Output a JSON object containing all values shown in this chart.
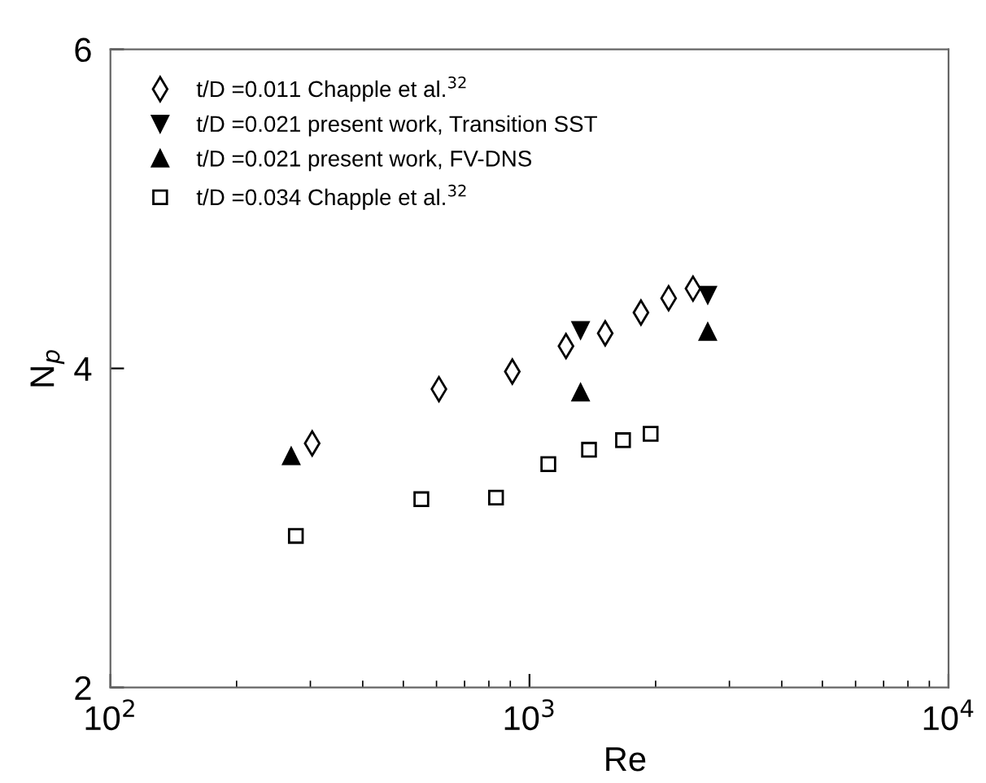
{
  "chart_data": {
    "type": "scatter",
    "xlabel": "Re",
    "ylabel": "N$_{p}$",
    "log": "x",
    "xlim": [
      100,
      10000
    ],
    "xticks": [
      {
        "value": 100,
        "label": "10$^{2}$"
      },
      {
        "value": 1000,
        "label": "10$^{3}$"
      },
      {
        "value": 10000,
        "label": "10$^{4}$"
      }
    ],
    "ylim": [
      2,
      6
    ],
    "yticks": [
      2,
      4,
      6
    ],
    "grid": false,
    "legend": "top left",
    "series": [
      {
        "name": "t/D =0.011 Chapple et al.$^{32}$",
        "color": "#000000",
        "marker": "diamond",
        "x": [
          303,
          608,
          910,
          1222,
          1516,
          1845,
          2148,
          2456
        ],
        "values": [
          3.53,
          3.87,
          3.98,
          4.14,
          4.22,
          4.35,
          4.44,
          4.5
        ]
      },
      {
        "name": "t/D =0.021 present work, Transition SST",
        "color": "#000000",
        "marker": "triangle_down",
        "x": [
          1324,
          2663
        ],
        "values": [
          4.24,
          4.46
        ]
      },
      {
        "name": "t/D =0.021 present work, FV-DNS",
        "color": "#000000",
        "marker": "triangle",
        "x": [
          270,
          1324,
          2663
        ],
        "values": [
          3.45,
          3.85,
          4.23
        ]
      },
      {
        "name": "t/D =0.034 Chapple et al.$^{32}$",
        "color": "#000000",
        "marker": "square",
        "x": [
          277,
          552,
          832,
          1109,
          1387,
          1672,
          1946
        ],
        "values": [
          2.95,
          3.18,
          3.19,
          3.4,
          3.49,
          3.55,
          3.59
        ]
      }
    ]
  }
}
